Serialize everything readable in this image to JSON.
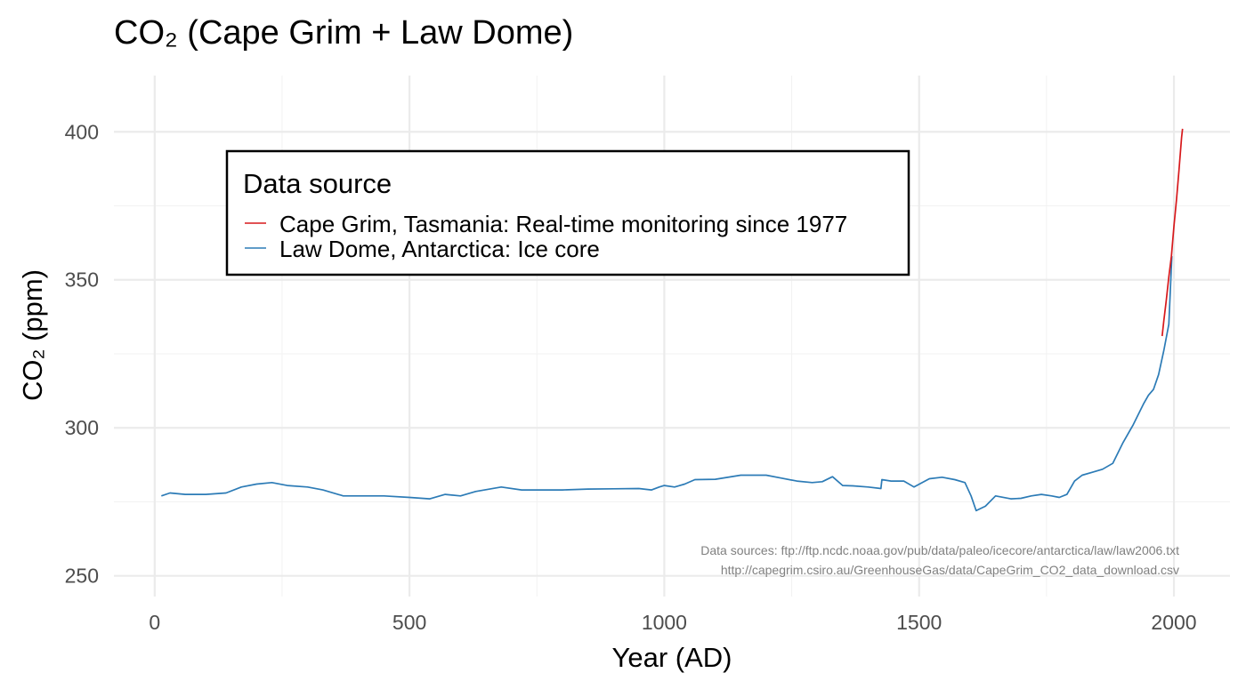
{
  "chart_data": {
    "type": "line",
    "title": "CO₂ (Cape Grim + Law Dome)",
    "xlabel": "Year (AD)",
    "ylabel": "CO₂ (ppm)",
    "xlim": [
      -80,
      2110
    ],
    "ylim": [
      243,
      419
    ],
    "x_ticks": [
      0,
      500,
      1000,
      1500,
      2000
    ],
    "y_ticks": [
      250,
      300,
      350,
      400
    ],
    "grid": true,
    "legend": {
      "title": "Data source",
      "position": "top-left-inside",
      "entries": [
        {
          "label": "Cape Grim, Tasmania: Real-time monitoring since 1977",
          "color": "#d7191c"
        },
        {
          "label": "Law Dome, Antarctica: Ice core",
          "color": "#2c7bb6"
        }
      ]
    },
    "caption": [
      "Data sources: ftp://ftp.ncdc.noaa.gov/pub/data/paleo/icecore/antarctica/law/law2006.txt",
      "http://capegrim.csiro.au/GreenhouseGas/data/CapeGrim_CO2_data_download.csv"
    ],
    "series": [
      {
        "name": "Law Dome, Antarctica: Ice core",
        "color": "#2c7bb6",
        "x": [
          13,
          30,
          60,
          100,
          140,
          170,
          200,
          230,
          260,
          300,
          330,
          370,
          400,
          450,
          500,
          540,
          570,
          600,
          630,
          680,
          720,
          760,
          800,
          850,
          900,
          950,
          975,
          990,
          1000,
          1020,
          1040,
          1060,
          1100,
          1150,
          1200,
          1230,
          1260,
          1290,
          1310,
          1330,
          1350,
          1370,
          1400,
          1425,
          1427,
          1445,
          1470,
          1490,
          1520,
          1545,
          1570,
          1590,
          1602,
          1612,
          1630,
          1650,
          1680,
          1700,
          1720,
          1740,
          1760,
          1775,
          1790,
          1805,
          1820,
          1840,
          1860,
          1880,
          1900,
          1920,
          1940,
          1950,
          1960,
          1970,
          1980,
          1990,
          1996
        ],
        "y": [
          277,
          278,
          277.5,
          277.5,
          278,
          280,
          281,
          281.5,
          280.5,
          280,
          279,
          277,
          277,
          277,
          276.5,
          276,
          277.5,
          277,
          278.5,
          280,
          279,
          279,
          279,
          279.3,
          279.4,
          279.5,
          279,
          280,
          280.5,
          280,
          281,
          282.5,
          282.6,
          284,
          284,
          283,
          282,
          281.5,
          281.8,
          283.5,
          280.5,
          280.4,
          280,
          279.5,
          282.5,
          282,
          282,
          280,
          282.8,
          283.3,
          282.5,
          281.5,
          277,
          272,
          273.5,
          277,
          276,
          276.2,
          277,
          277.5,
          277,
          276.5,
          277.5,
          282,
          284,
          285,
          286,
          288,
          295,
          301,
          308,
          311,
          313,
          318,
          326,
          335,
          358
        ]
      },
      {
        "name": "Cape Grim, Tasmania: Real-time monitoring since 1977",
        "color": "#d7191c",
        "x": [
          1977,
          1980,
          1985,
          1990,
          1995,
          2000,
          2005,
          2010,
          2015,
          2017
        ],
        "y": [
          331,
          336,
          343,
          351,
          358,
          368,
          377,
          387,
          398,
          401
        ]
      }
    ]
  }
}
